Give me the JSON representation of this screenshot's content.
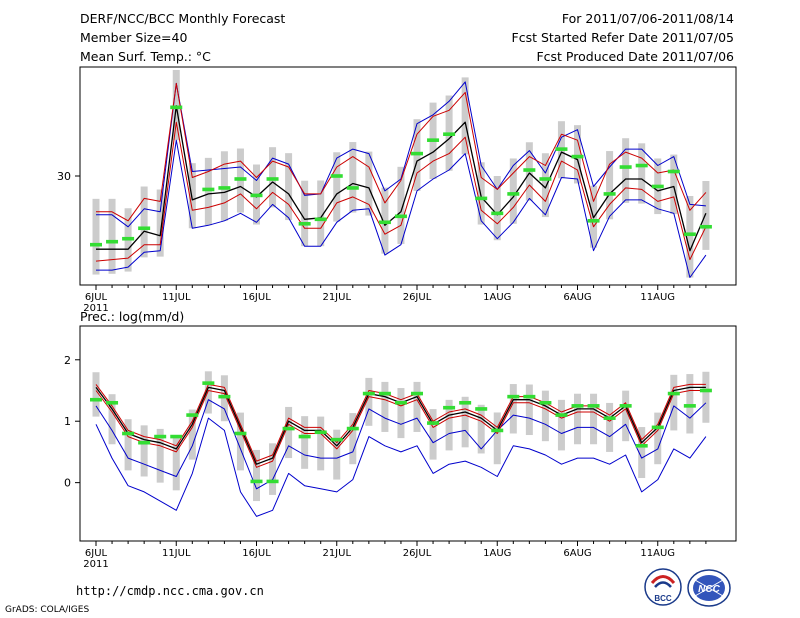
{
  "header": {
    "title": "DERF/NCC/BCC Monthly Forecast",
    "member_size": "Member Size=40",
    "variable": "Mean Surf. Temp.: °C",
    "period": "For 2011/07/06-2011/08/14",
    "fcst_started": "Fcst Started Refer Date 2011/07/05",
    "fcst_produced": "Fcst Produced Date 2011/07/06"
  },
  "footer": {
    "url": "http://cmdp.ncc.cma.gov.cn",
    "credit": "GrADS: COLA/IGES"
  },
  "logos": {
    "bcc": "BCC",
    "ncc": "NCC"
  },
  "colors": {
    "ensemble_mean": "#000000",
    "spread_inner": "#cc0000",
    "spread_outer": "#0000cc",
    "observation": "#33dd33",
    "box": "#cccccc"
  },
  "chart_data": [
    {
      "type": "line",
      "title": "Mean Surf. Temp.: °C",
      "x_ticks": [
        "6JUL",
        "11JUL",
        "16JUL",
        "21JUL",
        "26JUL",
        "1AUG",
        "6AUG",
        "11AUG"
      ],
      "x_year": "2011",
      "y_ticks": [
        30
      ],
      "ylim": [
        22.7,
        37.3
      ],
      "days": 39,
      "series": [
        {
          "name": "ensemble_mean",
          "values": [
            25.1,
            25.1,
            25.1,
            26.3,
            26,
            34.7,
            28.4,
            28.8,
            28.9,
            29.3,
            28.6,
            29.6,
            28.8,
            27.1,
            27.2,
            28.8,
            29.5,
            29.2,
            26.7,
            27.6,
            31,
            31.6,
            32.5,
            33.6,
            28.6,
            27.4,
            28.6,
            30.2,
            29.2,
            31.6,
            31.1,
            27.2,
            28.8,
            29.8,
            29.8,
            29,
            29.3,
            25,
            27.5
          ]
        },
        {
          "name": "member_max",
          "values": [
            27.6,
            27.6,
            27,
            28.5,
            28.3,
            36.2,
            29.9,
            30.3,
            30.8,
            31,
            29.9,
            31,
            30.6,
            28.8,
            28.8,
            30.6,
            31.3,
            30.6,
            28.2,
            29.7,
            32.8,
            34,
            34.4,
            35.6,
            29.9,
            29.1,
            30.2,
            31.3,
            30.7,
            32.8,
            32.4,
            28.3,
            30.8,
            31.6,
            31.2,
            30.2,
            30.4,
            27.7,
            28.9
          ]
        },
        {
          "name": "member_min",
          "values": [
            24.3,
            24.4,
            24.5,
            25.4,
            25.4,
            33.6,
            27.7,
            27.9,
            28.2,
            28.8,
            27.8,
            28.9,
            28.1,
            26.5,
            26.5,
            28.2,
            28.6,
            28.1,
            26.1,
            26.7,
            30.2,
            31,
            31.5,
            32.6,
            27.7,
            26.8,
            27.9,
            29.4,
            28.3,
            31,
            30.4,
            26.6,
            28.1,
            29.2,
            29.1,
            28.3,
            28.6,
            24.4,
            26.6
          ]
        },
        {
          "name": "outer_max",
          "values": [
            27.4,
            27.4,
            26.6,
            27.8,
            27.6,
            36.2,
            30.3,
            30.4,
            30.5,
            30.6,
            29.7,
            31.2,
            30.8,
            28.7,
            28.8,
            31.2,
            31.8,
            31.5,
            29,
            29.8,
            33.5,
            34.1,
            35,
            36.3,
            30.7,
            29.1,
            30.7,
            31.7,
            30.2,
            32.6,
            33.1,
            29.3,
            30.6,
            31.8,
            31.8,
            30.7,
            31.3,
            28.1,
            28
          ]
        },
        {
          "name": "outer_min",
          "values": [
            23.7,
            23.7,
            23.9,
            24.9,
            25,
            32.4,
            26.5,
            26.7,
            27,
            27.5,
            26.9,
            28.1,
            27.2,
            25.3,
            25.3,
            26.9,
            27.7,
            27.8,
            24.7,
            25.4,
            29,
            29.8,
            30.4,
            31.5,
            27,
            25.8,
            26.9,
            28.5,
            27.4,
            29.9,
            29.8,
            25,
            27.3,
            28.4,
            28.4,
            27.8,
            27.5,
            23.2,
            24.7
          ]
        },
        {
          "name": "observation",
          "values": [
            25.4,
            25.6,
            25.8,
            26.5,
            null,
            34.6,
            null,
            29.1,
            29.2,
            29.8,
            28.7,
            29.8,
            null,
            26.8,
            27.1,
            30,
            29.2,
            null,
            26.9,
            27.3,
            31.5,
            32.4,
            32.8,
            null,
            28.5,
            27.5,
            28.8,
            30.4,
            29.8,
            31.8,
            31.3,
            27,
            28.8,
            30.6,
            30.7,
            29.3,
            30.3,
            26.1,
            26.6
          ]
        }
      ]
    },
    {
      "type": "line",
      "title": "Prec.: log(mm/d)",
      "x_ticks": [
        "6JUL",
        "11JUL",
        "16JUL",
        "21JUL",
        "26JUL",
        "1AUG",
        "6AUG",
        "11AUG"
      ],
      "x_year": "2011",
      "y_ticks": [
        2,
        1,
        0
      ],
      "ylim": [
        -0.95,
        2.55
      ],
      "days": 39,
      "series": [
        {
          "name": "ensemble_mean",
          "values": [
            1.55,
            1.2,
            0.8,
            0.7,
            0.65,
            0.55,
            0.95,
            1.55,
            1.5,
            0.9,
            0.3,
            0.4,
            1.0,
            0.85,
            0.85,
            0.6,
            0.9,
            1.45,
            1.4,
            1.3,
            1.4,
            0.95,
            1.1,
            1.15,
            1.05,
            0.85,
            1.35,
            1.35,
            1.25,
            1.1,
            1.2,
            1.2,
            1.05,
            1.25,
            0.65,
            0.9,
            1.5,
            1.55,
            1.55
          ]
        },
        {
          "name": "member_max",
          "values": [
            1.6,
            1.25,
            0.85,
            0.75,
            0.7,
            0.6,
            1.0,
            1.6,
            1.55,
            0.95,
            0.35,
            0.45,
            1.05,
            0.9,
            0.9,
            0.65,
            0.95,
            1.5,
            1.45,
            1.35,
            1.45,
            1.0,
            1.15,
            1.2,
            1.1,
            0.9,
            1.4,
            1.4,
            1.3,
            1.15,
            1.25,
            1.25,
            1.1,
            1.3,
            0.7,
            0.95,
            1.55,
            1.6,
            1.6
          ]
        },
        {
          "name": "member_min",
          "values": [
            1.5,
            1.15,
            0.75,
            0.65,
            0.6,
            0.5,
            0.9,
            1.5,
            1.45,
            0.85,
            0.25,
            0.35,
            0.95,
            0.8,
            0.8,
            0.55,
            0.85,
            1.4,
            1.35,
            1.25,
            1.35,
            0.9,
            1.05,
            1.1,
            1.0,
            0.8,
            1.3,
            1.3,
            1.2,
            1.05,
            1.15,
            1.15,
            1.0,
            1.2,
            0.6,
            0.85,
            1.45,
            1.5,
            1.5
          ]
        },
        {
          "name": "outer_max",
          "values": [
            1.25,
            0.85,
            0.4,
            0.3,
            0.2,
            0.1,
            0.6,
            1.35,
            1.2,
            0.55,
            -0.1,
            0.05,
            0.6,
            0.45,
            0.4,
            0.4,
            0.5,
            1.2,
            1.05,
            0.95,
            1.05,
            0.65,
            0.8,
            0.85,
            0.55,
            0.85,
            1.1,
            1.05,
            0.95,
            0.8,
            0.9,
            0.9,
            0.75,
            0.95,
            0.4,
            0.55,
            1.25,
            1.05,
            1.3
          ]
        },
        {
          "name": "outer_min",
          "values": [
            0.95,
            0.4,
            -0.05,
            -0.15,
            -0.3,
            -0.45,
            0.15,
            1.05,
            0.85,
            -0.15,
            -0.55,
            -0.45,
            0.15,
            -0.05,
            -0.1,
            -0.15,
            0.05,
            0.75,
            0.6,
            0.5,
            0.6,
            0.15,
            0.3,
            0.35,
            0.25,
            0.1,
            0.6,
            0.55,
            0.45,
            0.3,
            0.4,
            0.4,
            0.3,
            0.45,
            -0.15,
            0.05,
            0.55,
            0.4,
            0.75
          ]
        },
        {
          "name": "observation",
          "values": [
            1.35,
            1.3,
            0.8,
            0.65,
            0.75,
            0.75,
            1.1,
            1.62,
            1.4,
            0.8,
            0.02,
            0.02,
            0.88,
            0.75,
            0.82,
            0.7,
            0.88,
            1.45,
            1.45,
            1.3,
            1.45,
            0.97,
            1.22,
            1.3,
            1.2,
            0.85,
            1.4,
            1.4,
            1.3,
            1.1,
            1.25,
            1.25,
            1.05,
            1.25,
            0.6,
            0.9,
            1.45,
            1.25,
            1.5
          ]
        }
      ]
    }
  ]
}
